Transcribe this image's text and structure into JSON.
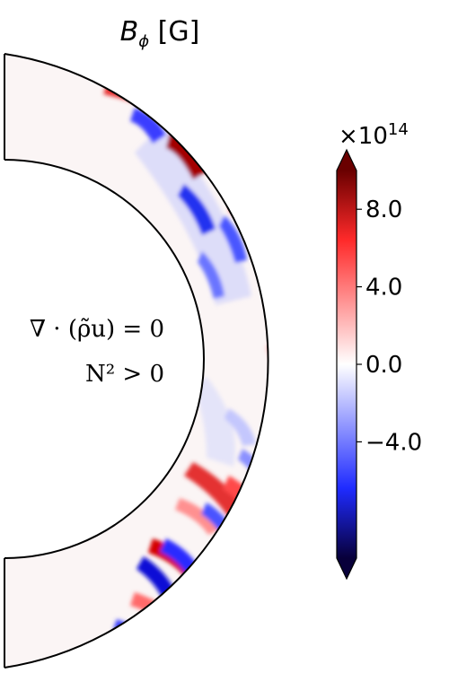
{
  "title": {
    "symbol": "B",
    "subscript": "ϕ",
    "unit": "[G]"
  },
  "annotations": {
    "line1": "∇ · (ρ̃u) = 0",
    "line2": "N² > 0"
  },
  "colorbar": {
    "multiplier": "×10",
    "exponent": "14",
    "ticks": [
      "8.0",
      "4.0",
      "0.0",
      "−4.0"
    ],
    "tick_values": [
      8.0,
      4.0,
      0.0,
      -4.0
    ],
    "range": [
      -10.0,
      10.0
    ],
    "cmap_stops": [
      "#08003a",
      "#1f2bff",
      "#ffffff",
      "#ff2a2a",
      "#6a0000"
    ]
  }
}
